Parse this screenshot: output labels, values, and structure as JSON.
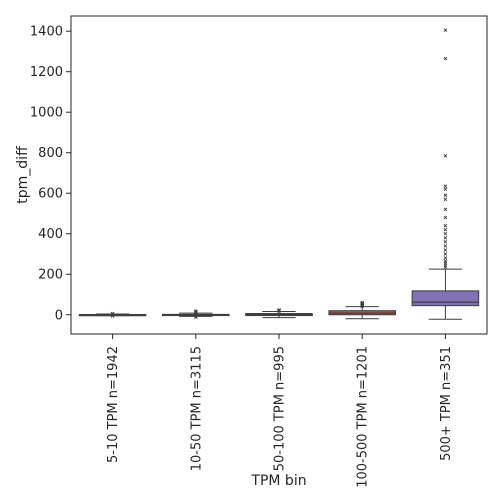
{
  "chart_data": {
    "type": "box",
    "xlabel": "TPM bin",
    "ylabel": "tpm_diff",
    "ylim": [
      -95,
      1475
    ],
    "yticks": [
      0,
      200,
      400,
      600,
      800,
      1000,
      1200,
      1400
    ],
    "grid": false,
    "categories": [
      "5-10 TPM n=1942",
      "10-50 TPM n=3115",
      "50-100 TPM n=995",
      "100-500 TPM n=1201",
      "500+ TPM n=351"
    ],
    "boxes": [
      {
        "label": "5-10 TPM n=1942",
        "color": "#4c72b0",
        "whisker_low": -4,
        "q1": -1,
        "median": 0,
        "q3": 1,
        "whisker_high": 4,
        "outliers": [
          -6,
          -5,
          5,
          6
        ]
      },
      {
        "label": "10-50 TPM n=3115",
        "color": "#dd8452",
        "whisker_low": -8,
        "q1": -2,
        "median": 0,
        "q3": 2,
        "whisker_high": 8,
        "outliers": [
          -12,
          -10,
          10,
          12,
          15,
          18
        ]
      },
      {
        "label": "50-100 TPM n=995",
        "color": "#55a868",
        "whisker_low": -14,
        "q1": -4,
        "median": 1,
        "q3": 6,
        "whisker_high": 16,
        "outliers": [
          18,
          20,
          22,
          24
        ]
      },
      {
        "label": "100-500 TPM n=1201",
        "color": "#c44e52",
        "whisker_low": -20,
        "q1": 0,
        "median": 8,
        "q3": 20,
        "whisker_high": 40,
        "outliers": [
          42,
          45,
          48,
          50,
          52,
          55,
          58,
          60
        ]
      },
      {
        "label": "500+ TPM n=351",
        "color": "#8172b3",
        "whisker_low": -22,
        "q1": 45,
        "median": 62,
        "q3": 118,
        "whisker_high": 225,
        "outliers": [
          235,
          245,
          255,
          265,
          280,
          300,
          320,
          340,
          360,
          380,
          400,
          420,
          440,
          480,
          520,
          570,
          590,
          620,
          635,
          785,
          1265,
          1405
        ]
      }
    ]
  }
}
